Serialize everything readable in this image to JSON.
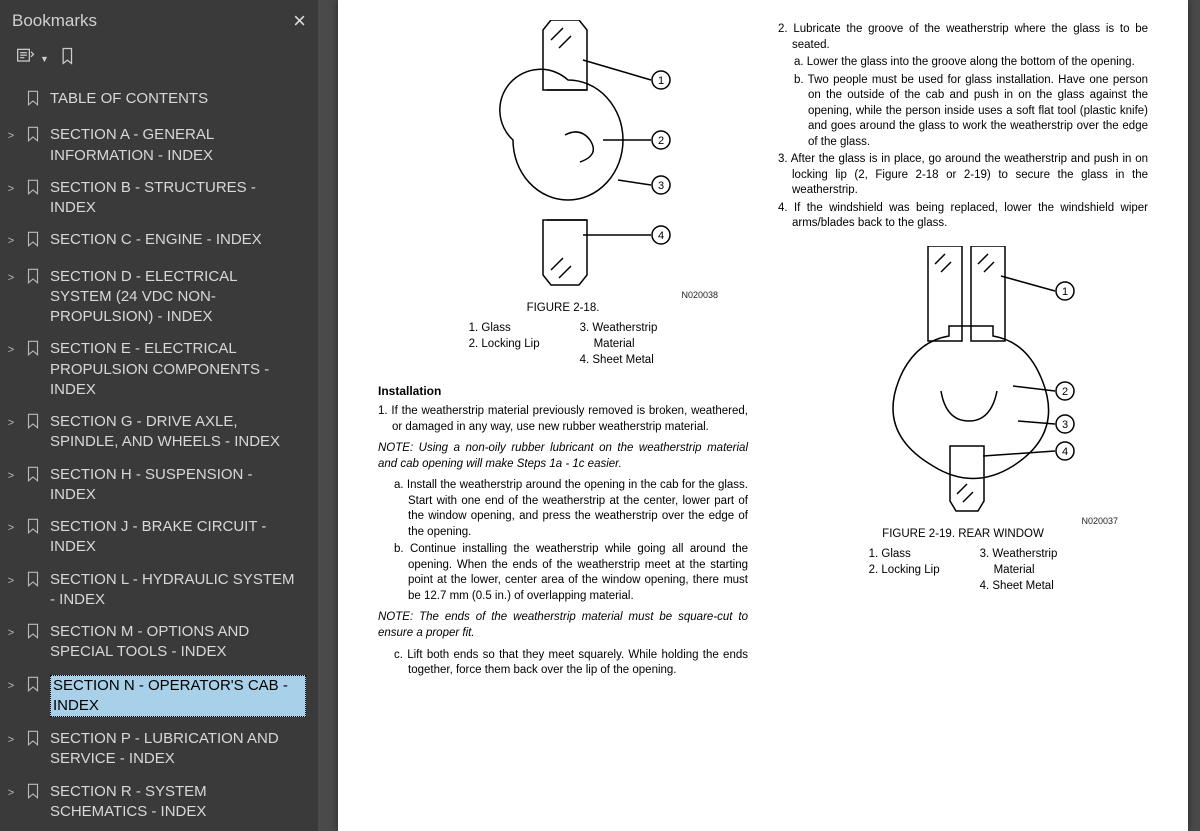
{
  "sidebar": {
    "title": "Bookmarks",
    "items": [
      {
        "label": "TABLE OF CONTENTS",
        "expandable": false
      },
      {
        "label": "SECTION A - GENERAL INFORMATION - INDEX",
        "expandable": true
      },
      {
        "label": "SECTION B - STRUCTURES - INDEX",
        "expandable": true
      },
      {
        "label": "SECTION C - ENGINE - INDEX",
        "expandable": true
      },
      {
        "label": "SECTION D - ELECTRICAL SYSTEM (24 VDC NON-PROPULSION) - INDEX",
        "expandable": true
      },
      {
        "label": "SECTION E - ELECTRICAL PROPULSION COMPONENTS - INDEX",
        "expandable": true
      },
      {
        "label": "SECTION G - DRIVE AXLE, SPINDLE, AND WHEELS - INDEX",
        "expandable": true
      },
      {
        "label": "SECTION H - SUSPENSION - INDEX",
        "expandable": true
      },
      {
        "label": "SECTION J - BRAKE CIRCUIT - INDEX",
        "expandable": true
      },
      {
        "label": "SECTION L - HYDRAULIC SYSTEM - INDEX",
        "expandable": true
      },
      {
        "label": "SECTION M - OPTIONS AND SPECIAL TOOLS - INDEX",
        "expandable": true
      },
      {
        "label": "SECTION N - OPERATOR'S CAB - INDEX",
        "expandable": true,
        "selected": true
      },
      {
        "label": "SECTION P - LUBRICATION AND SERVICE - INDEX",
        "expandable": true
      },
      {
        "label": "SECTION R - SYSTEM SCHEMATICS - INDEX",
        "expandable": true
      }
    ]
  },
  "doc": {
    "fig1": {
      "id": "N020038",
      "caption": "FIGURE 2-18."
    },
    "fig2": {
      "id": "N020037",
      "caption": "FIGURE 2-19. REAR WINDOW"
    },
    "legend": {
      "l1": "1. Glass",
      "l2": "2. Locking Lip",
      "l3": "3. Weatherstrip",
      "l3b": "Material",
      "l4": "4. Sheet Metal"
    },
    "col1": {
      "h": "Installation",
      "s1": "1. If the weatherstrip material previously removed is broken, weathered, or damaged in any way, use new rubber weatherstrip material.",
      "n1": "NOTE: Using a non-oily rubber lubricant on the weatherstrip material and cab opening will make Steps 1a - 1c easier.",
      "sa": "a. Install the weatherstrip around the opening in the cab for the glass. Start with one end of the weatherstrip at the center, lower part of the window opening, and press the weatherstrip over the edge of the opening.",
      "sb": "b. Continue installing the weatherstrip while going all around the opening. When the ends of the weatherstrip meet at the starting point at the lower, center area of the window opening, there must be 12.7 mm (0.5 in.) of overlapping material.",
      "n2": "NOTE: The ends of the weatherstrip material must be square-cut to ensure a proper fit.",
      "sc": "c. Lift both ends so that they meet squarely. While holding the ends together, force them back over the lip of the opening."
    },
    "col2": {
      "s2": "2. Lubricate the groove of the weatherstrip where the glass is to be seated.",
      "sa": "a. Lower the glass into the groove along the bottom of the opening.",
      "sb": "b. Two people must be used for glass installation. Have one person on the outside of the cab and push in on the glass against the opening, while the person inside uses a soft flat tool (plastic knife) and goes around the glass to work the weatherstrip over the edge of the glass.",
      "s3": "3. After the glass is in place, go around the weatherstrip and push in on locking lip (2, Figure 2-18 or 2-19) to secure the glass in the weatherstrip.",
      "s4": "4. If the windshield was being replaced, lower the windshield wiper arms/blades back to the glass."
    }
  }
}
